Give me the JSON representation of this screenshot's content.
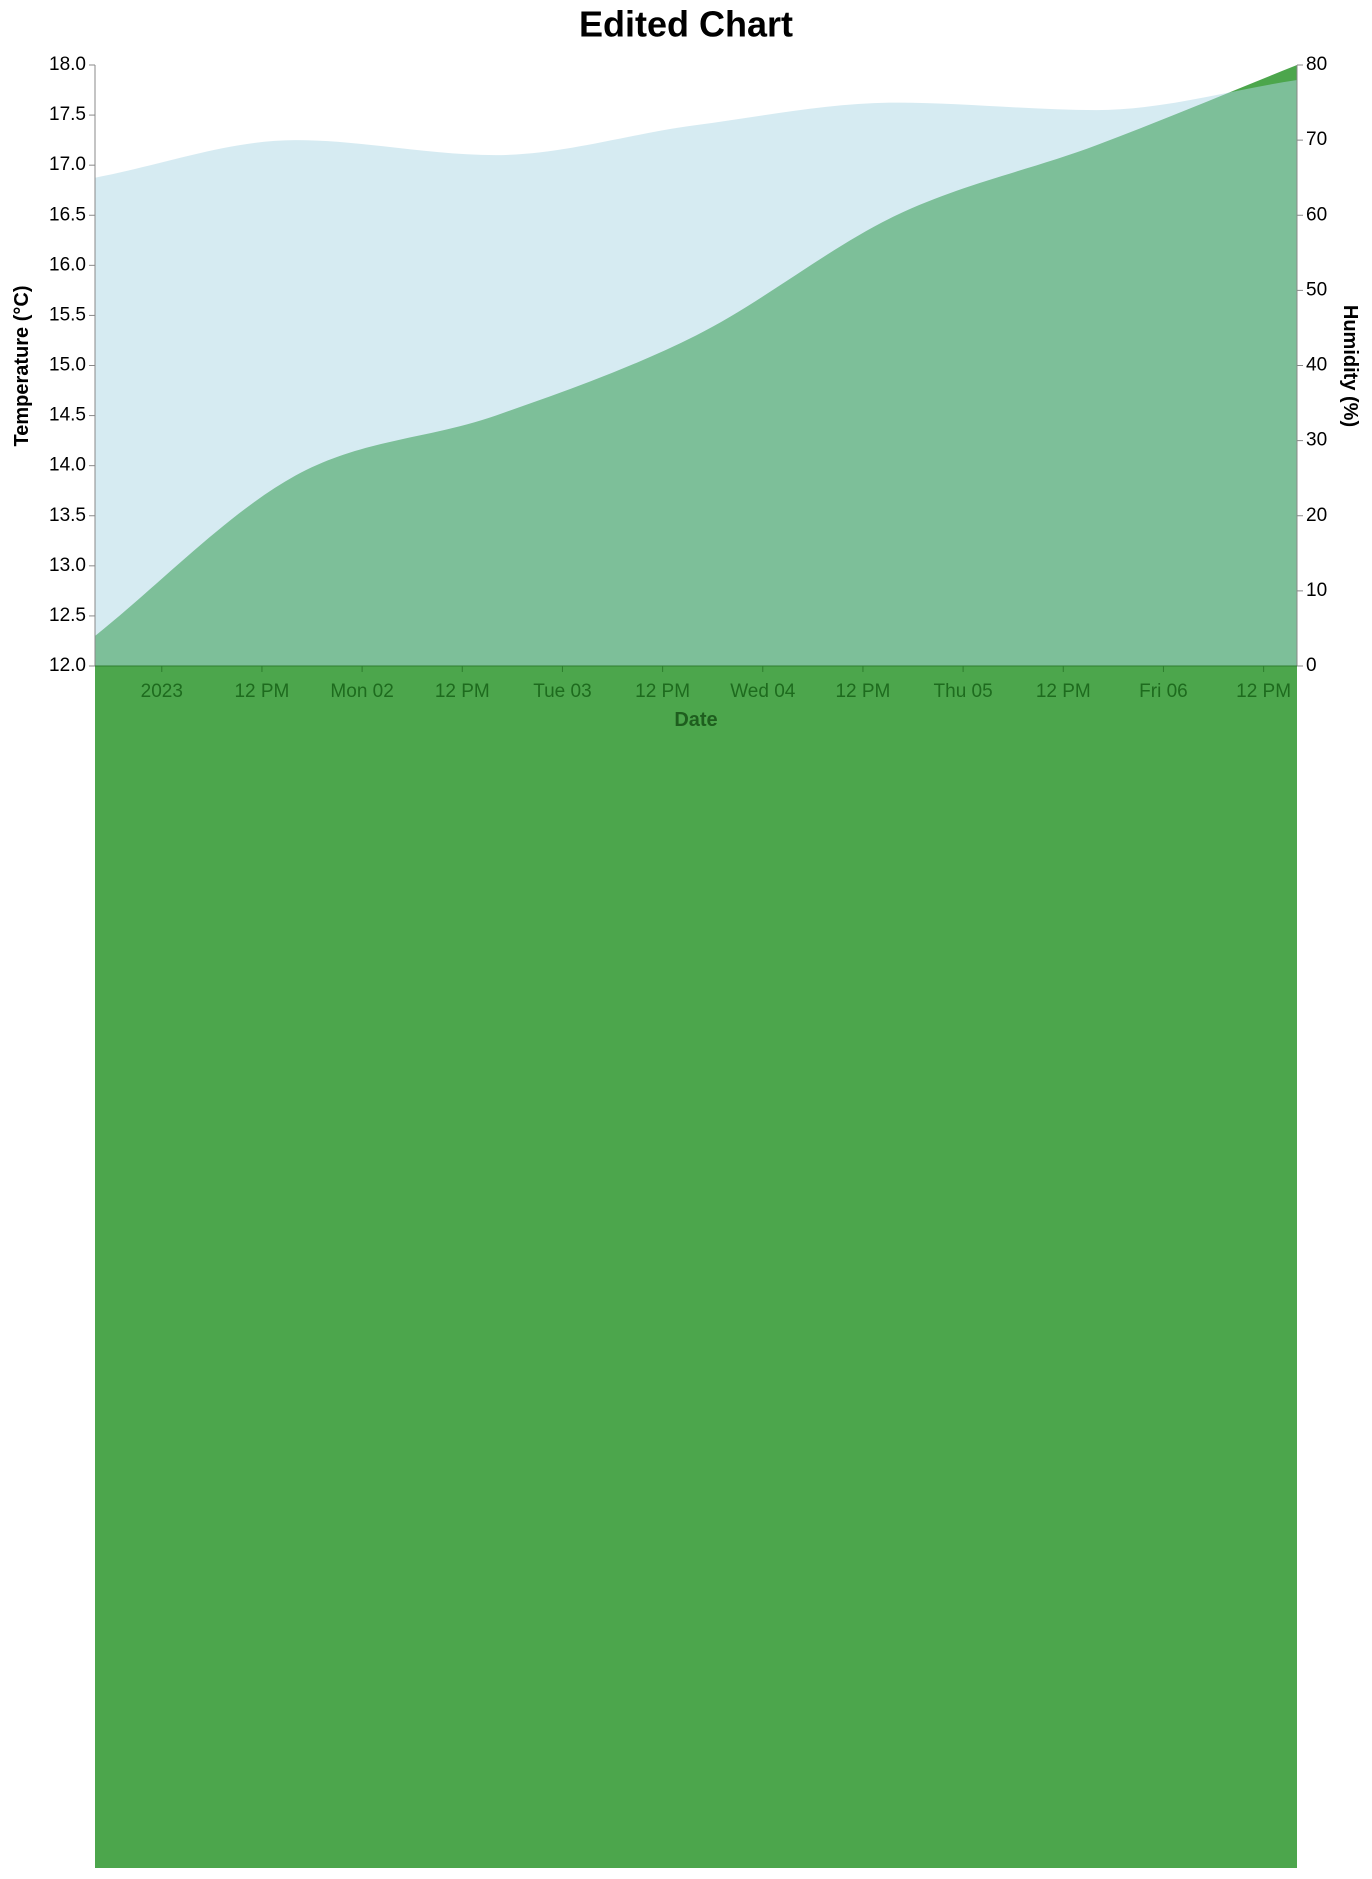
{
  "chart_data": {
    "type": "area",
    "title": "Edited Chart",
    "x_label": "Date",
    "y_label": "Temperature (°C)",
    "y2_label": "Humidity (%)",
    "x": [
      "2022-12-31T16:00",
      "2023-01-01T16:00",
      "2023-01-02T16:00",
      "2023-01-03T16:00",
      "2023-01-04T16:00",
      "2023-01-05T16:00",
      "2023-01-06T16:00"
    ],
    "xlim": [
      "2022-12-31T16:00",
      "2023-01-06T16:00"
    ],
    "xticks": [
      {
        "value": "2023-01-01T00:00",
        "label": "2023"
      },
      {
        "value": "2023-01-01T12:00",
        "label": "12 PM"
      },
      {
        "value": "2023-01-02T00:00",
        "label": "Mon 02"
      },
      {
        "value": "2023-01-02T12:00",
        "label": "12 PM"
      },
      {
        "value": "2023-01-03T00:00",
        "label": "Tue 03"
      },
      {
        "value": "2023-01-03T12:00",
        "label": "12 PM"
      },
      {
        "value": "2023-01-04T00:00",
        "label": "Wed 04"
      },
      {
        "value": "2023-01-04T12:00",
        "label": "12 PM"
      },
      {
        "value": "2023-01-05T00:00",
        "label": "Thu 05"
      },
      {
        "value": "2023-01-05T12:00",
        "label": "12 PM"
      },
      {
        "value": "2023-01-06T00:00",
        "label": "Fri 06"
      },
      {
        "value": "2023-01-06T12:00",
        "label": "12 PM"
      }
    ],
    "ylim": [
      12,
      18
    ],
    "yticks": [
      {
        "value": 12,
        "label": "12.0"
      },
      {
        "value": 12.5,
        "label": "12.5"
      },
      {
        "value": 13,
        "label": "13.0"
      },
      {
        "value": 13.5,
        "label": "13.5"
      },
      {
        "value": 14,
        "label": "14.0"
      },
      {
        "value": 14.5,
        "label": "14.5"
      },
      {
        "value": 15,
        "label": "15.0"
      },
      {
        "value": 15.5,
        "label": "15.5"
      },
      {
        "value": 16,
        "label": "16.0"
      },
      {
        "value": 16.5,
        "label": "16.5"
      },
      {
        "value": 17,
        "label": "17.0"
      },
      {
        "value": 17.5,
        "label": "17.5"
      },
      {
        "value": 18,
        "label": "18.0"
      }
    ],
    "y2lim": [
      0,
      80
    ],
    "y2ticks": [
      0,
      10,
      20,
      30,
      40,
      50,
      60,
      70,
      80
    ],
    "series": [
      {
        "name": "Temperature",
        "color": "green",
        "opacity": 0.7,
        "values": [
          12.3,
          13.9,
          14.5,
          15.3,
          16.5,
          17.2,
          18.0
        ]
      },
      {
        "name": "Humidity",
        "color": "lightblue",
        "opacity": 0.5,
        "axis": "y2",
        "values": [
          65,
          70,
          68,
          72,
          75,
          74,
          78
        ]
      }
    ]
  }
}
